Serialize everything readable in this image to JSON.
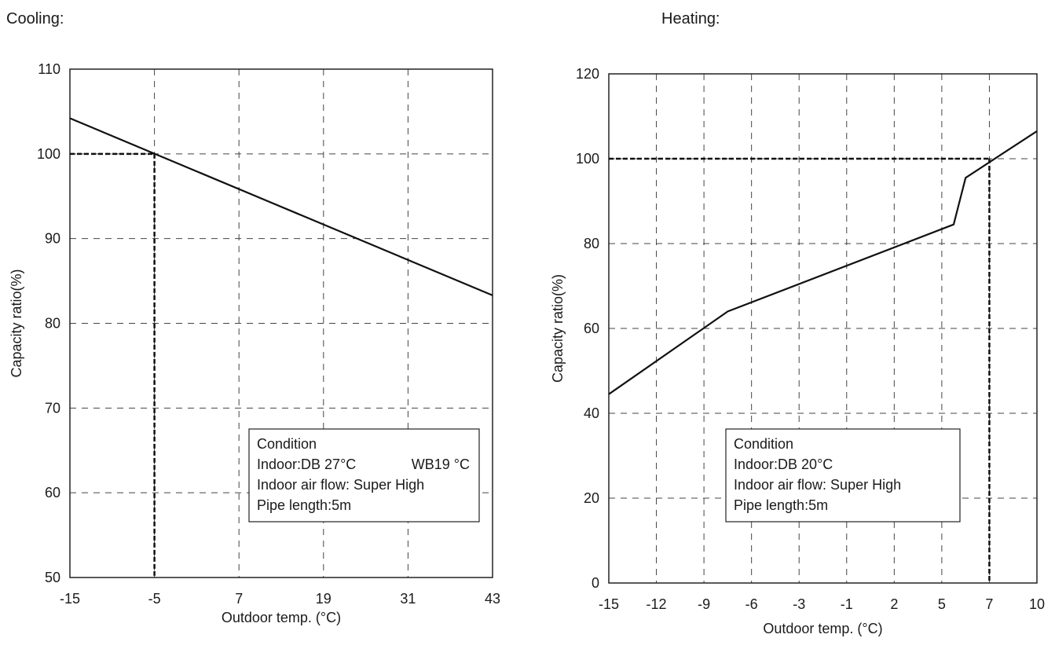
{
  "chart_data": [
    {
      "title": "Cooling:",
      "type": "line",
      "xlabel": "Outdoor temp. (°C)",
      "ylabel": "Capacity ratio(%)",
      "x_ticks": [
        "-15",
        "-5",
        "7",
        "19",
        "31",
        "43"
      ],
      "y_ticks": [
        "50",
        "60",
        "70",
        "80",
        "90",
        "100",
        "110"
      ],
      "ylim": [
        50,
        110
      ],
      "grid": true,
      "series": [
        {
          "x": [
            -15,
            43
          ],
          "y": [
            104.2,
            83.3
          ]
        }
      ],
      "reference": {
        "x": -5,
        "y": 100
      },
      "condition": {
        "heading": "Condition",
        "indoor": "Indoor:DB 27°C",
        "indoor_wb": "WB19 °C",
        "airflow": "Indoor air flow: Super High",
        "pipe": "Pipe length:5m"
      }
    },
    {
      "title": "Heating:",
      "type": "line",
      "xlabel": "Outdoor temp. (°C)",
      "ylabel": "Capacity ratio(%)",
      "x_ticks": [
        "-15",
        "-12",
        "-9",
        "-6",
        "-3",
        "-1",
        "2",
        "5",
        "7",
        "10"
      ],
      "y_ticks": [
        "0",
        "20",
        "40",
        "60",
        "80",
        "100",
        "120"
      ],
      "ylim": [
        0,
        120
      ],
      "grid": true,
      "series": [
        {
          "x": [
            -15,
            -7.5,
            5.5,
            6,
            10
          ],
          "y": [
            44.5,
            64,
            84.5,
            95.5,
            106.5
          ]
        }
      ],
      "reference": {
        "x": 7,
        "y": 100
      },
      "condition": {
        "heading": "Condition",
        "indoor": "Indoor:DB 20°C",
        "airflow": "Indoor air flow: Super High",
        "pipe": "Pipe length:5m"
      }
    }
  ]
}
